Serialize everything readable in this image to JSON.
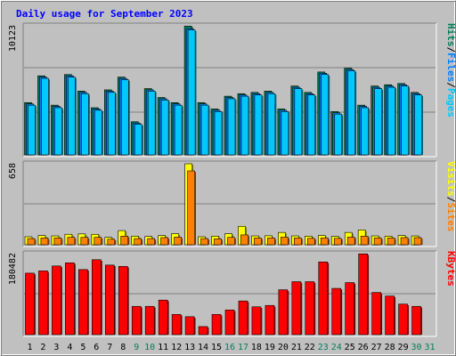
{
  "chart_data": [
    {
      "type": "bar",
      "title": "Daily usage for September 2023",
      "panel": "hits-files-pages",
      "y_axis_label_max": "10123",
      "ylim": [
        0,
        10123
      ],
      "legend": [
        {
          "text": "Pages",
          "color": "#00c8ff"
        },
        {
          "text": "Files",
          "color": "#0080ff"
        },
        {
          "text": "Hits",
          "color": "#00805a"
        }
      ],
      "categories": [
        "1",
        "2",
        "3",
        "4",
        "5",
        "6",
        "7",
        "8",
        "9",
        "10",
        "11",
        "12",
        "13",
        "14",
        "15",
        "16",
        "17",
        "18",
        "19",
        "20",
        "21",
        "22",
        "23",
        "24",
        "25",
        "26",
        "27",
        "28",
        "29",
        "30",
        "31"
      ],
      "weekend_days": [
        "9",
        "10",
        "16",
        "17",
        "23",
        "24",
        "30",
        "31"
      ],
      "series": [
        {
          "name": "Hits",
          "color": "#00805a",
          "values": [
            4100,
            6200,
            3900,
            6300,
            5000,
            3700,
            5100,
            6100,
            2600,
            5200,
            4500,
            4100,
            10100,
            4100,
            3600,
            4600,
            4800,
            4900,
            5000,
            3600,
            5400,
            4900,
            6500,
            3400,
            6800,
            3900,
            5400,
            5500,
            5600,
            4900,
            0
          ]
        },
        {
          "name": "Files",
          "color": "#0080ff",
          "values": [
            4000,
            6100,
            3800,
            6200,
            4900,
            3600,
            5000,
            6000,
            2500,
            5100,
            4400,
            4000,
            9900,
            4000,
            3500,
            4500,
            4700,
            4800,
            4900,
            3500,
            5300,
            4800,
            6400,
            3300,
            6700,
            3800,
            5300,
            5400,
            5500,
            4800,
            0
          ]
        },
        {
          "name": "Pages",
          "color": "#00c8ff",
          "values": [
            3900,
            6000,
            3700,
            6100,
            4800,
            3500,
            4900,
            5900,
            2400,
            5000,
            4300,
            3900,
            9800,
            3900,
            3400,
            4400,
            4600,
            4700,
            4800,
            3400,
            5200,
            4700,
            6300,
            3200,
            6600,
            3700,
            5200,
            5300,
            5400,
            4700,
            0
          ]
        }
      ]
    },
    {
      "type": "bar",
      "panel": "visits-sites",
      "y_axis_label_max": "658",
      "ylim": [
        0,
        658
      ],
      "legend": [
        {
          "text": "Sites",
          "color": "#ff8000"
        },
        {
          "text": "Visits",
          "color": "#ffff00"
        }
      ],
      "categories": [
        "1",
        "2",
        "3",
        "4",
        "5",
        "6",
        "7",
        "8",
        "9",
        "10",
        "11",
        "12",
        "13",
        "14",
        "15",
        "16",
        "17",
        "18",
        "19",
        "20",
        "21",
        "22",
        "23",
        "24",
        "25",
        "26",
        "27",
        "28",
        "29",
        "30",
        "31"
      ],
      "series": [
        {
          "name": "Visits",
          "color": "#ffff00",
          "values": [
            65,
            75,
            72,
            85,
            88,
            85,
            60,
            115,
            70,
            68,
            75,
            90,
            658,
            65,
            70,
            90,
            150,
            72,
            73,
            100,
            72,
            70,
            75,
            68,
            100,
            120,
            72,
            70,
            75,
            72,
            0
          ]
        },
        {
          "name": "Sites",
          "color": "#ff8000",
          "values": [
            50,
            55,
            55,
            60,
            60,
            60,
            45,
            70,
            50,
            50,
            58,
            62,
            600,
            50,
            48,
            60,
            80,
            55,
            55,
            62,
            55,
            52,
            55,
            52,
            62,
            70,
            55,
            55,
            58,
            58,
            0
          ]
        }
      ]
    },
    {
      "type": "bar",
      "panel": "kbytes",
      "y_axis_label_max": "180482",
      "ylim": [
        0,
        180482
      ],
      "legend": [
        {
          "text": "KBytes",
          "color": "#ff0000"
        }
      ],
      "categories": [
        "1",
        "2",
        "3",
        "4",
        "5",
        "6",
        "7",
        "8",
        "9",
        "10",
        "11",
        "12",
        "13",
        "14",
        "15",
        "16",
        "17",
        "18",
        "19",
        "20",
        "21",
        "22",
        "23",
        "24",
        "25",
        "26",
        "27",
        "28",
        "29",
        "30",
        "31"
      ],
      "series": [
        {
          "name": "KBytes",
          "color": "#ff0000",
          "values": [
            137000,
            142000,
            153000,
            160000,
            145000,
            167000,
            155000,
            152000,
            63000,
            63000,
            77000,
            45000,
            40000,
            18000,
            45000,
            55000,
            75000,
            62000,
            65000,
            100000,
            118000,
            118000,
            162000,
            103000,
            116000,
            180000,
            94000,
            86000,
            68000,
            63000,
            0
          ]
        }
      ]
    }
  ]
}
